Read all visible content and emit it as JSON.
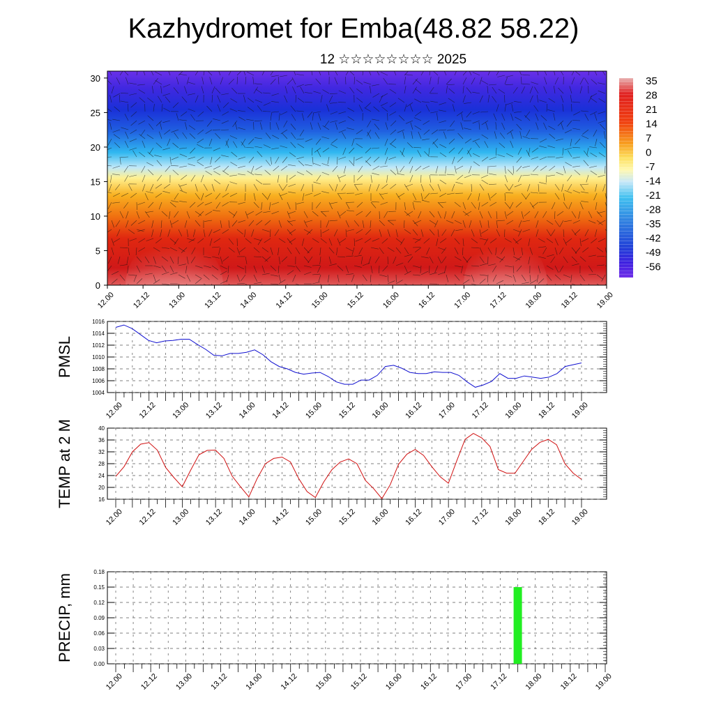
{
  "title": "Kazhydromet for Emba(48.82 58.22)",
  "subtitle": "12 ☆☆☆☆☆☆☆☆ 2025",
  "time_ticks": [
    "12.00",
    "12.12",
    "13.00",
    "13.12",
    "14.00",
    "14.12",
    "15.00",
    "15.12",
    "16.00",
    "16.12",
    "17.00",
    "17.12",
    "18.00",
    "18.12",
    "19.00"
  ],
  "chart_data": [
    {
      "type": "heatmap",
      "xlabel": "",
      "ylabel": "",
      "x_range": [
        "12.00",
        "19.00"
      ],
      "ylim": [
        0,
        31
      ],
      "y_ticks": [
        0,
        5,
        10,
        15,
        20,
        25,
        30
      ],
      "colorbar": {
        "labels": [
          "35",
          "28",
          "21",
          "14",
          "7",
          "0",
          "-7",
          "-14",
          "-21",
          "-28",
          "-35",
          "-42",
          "-49",
          "-56"
        ],
        "stops": [
          "#e8b0b0",
          "#e02020",
          "#f06010",
          "#f8a020",
          "#fde060",
          "#fff8b0",
          "#c8e8f8",
          "#40c0f0",
          "#3080e0",
          "#2040d8",
          "#4020e0",
          "#7030e8"
        ]
      },
      "levels": [
        {
          "y": 0,
          "value": 30
        },
        {
          "y": 5,
          "value": 22
        },
        {
          "y": 10,
          "value": 10
        },
        {
          "y": 15,
          "value": -5
        },
        {
          "y": 18,
          "value": -25
        },
        {
          "y": 22,
          "value": -45
        },
        {
          "y": 25,
          "value": -55
        },
        {
          "y": 30,
          "value": -50
        }
      ]
    },
    {
      "type": "line",
      "ylabel": "PMSL",
      "ylim": [
        1004,
        1016
      ],
      "y_ticks": [
        1004,
        1006,
        1008,
        1010,
        1012,
        1014,
        1016
      ],
      "series": [
        {
          "color": "#1010d0",
          "values": [
            1015,
            1015.4,
            1014.8,
            1013.8,
            1012.8,
            1012.4,
            1012.7,
            1012.8,
            1013,
            1013,
            1012.1,
            1011.3,
            1010.3,
            1010.2,
            1010.6,
            1010.6,
            1010.8,
            1011.2,
            1010.4,
            1009.2,
            1008.4,
            1008,
            1007.4,
            1007.1,
            1007.3,
            1007.4,
            1006.7,
            1005.8,
            1005.4,
            1005.4,
            1006.1,
            1006.1,
            1006.9,
            1008.4,
            1008.6,
            1008.1,
            1007.4,
            1007.2,
            1007.2,
            1007.5,
            1007.4,
            1007.4,
            1006.9,
            1005.8,
            1004.9,
            1005.3,
            1005.9,
            1007.2,
            1006.4,
            1006.4,
            1006.8,
            1006.6,
            1006.4,
            1006.6,
            1007.2,
            1008.4,
            1008.7,
            1009
          ]
        }
      ]
    },
    {
      "type": "line",
      "ylabel": "TEMP at 2 M",
      "ylim": [
        16,
        40
      ],
      "y_ticks": [
        16,
        20,
        24,
        28,
        32,
        36,
        40
      ],
      "series": [
        {
          "color": "#d01010",
          "values": [
            23.7,
            27,
            32,
            34.6,
            35.1,
            32.6,
            26.7,
            23.3,
            20.2,
            25.8,
            31,
            32.5,
            32.6,
            29.8,
            23.8,
            20.2,
            16.8,
            23,
            28,
            29.8,
            30.2,
            28.6,
            23,
            18.6,
            16.6,
            21.8,
            26,
            28.6,
            29.6,
            28,
            22.4,
            19.6,
            16.2,
            20.9,
            27.8,
            31.2,
            32.8,
            30.8,
            27,
            23.6,
            21.4,
            29,
            36.2,
            38.2,
            36.7,
            33.8,
            26,
            24.8,
            24.8,
            28.8,
            32.8,
            35.2,
            36.2,
            34.4,
            28,
            24.8,
            22.7
          ]
        }
      ]
    },
    {
      "type": "bar",
      "ylabel": "PRECIP, mm",
      "ylim": [
        0,
        0.18
      ],
      "y_ticks": [
        "0.00",
        "0.03",
        "0.06",
        "0.09",
        "0.12",
        "0.15",
        "0.18"
      ],
      "bars": [
        {
          "x": "17.18",
          "value": 0.15,
          "color": "#22ee22"
        }
      ]
    }
  ]
}
